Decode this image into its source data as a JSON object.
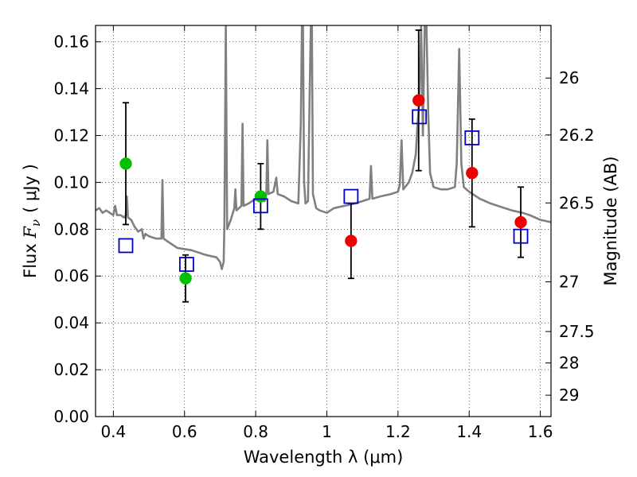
{
  "chart_data": {
    "type": "scatter",
    "title": "",
    "xlabel": "Wavelength  λ (μm)",
    "ylabel_left_prefix": "Flux  ",
    "ylabel_left_math": "F",
    "ylabel_left_sub": "ν",
    "ylabel_left_unit": "( μJy )",
    "ylabel_right": "Magnitude (AB)",
    "xlim": [
      0.35,
      1.63
    ],
    "ylim": [
      0.0,
      0.167
    ],
    "grid": true,
    "x_ticks": [
      {
        "value": 0.4,
        "label": "0.4"
      },
      {
        "value": 0.6,
        "label": "0.6"
      },
      {
        "value": 0.8,
        "label": "0.8"
      },
      {
        "value": 1.0,
        "label": "1"
      },
      {
        "value": 1.2,
        "label": "1.2"
      },
      {
        "value": 1.4,
        "label": "1.4"
      },
      {
        "value": 1.6,
        "label": "1.6"
      }
    ],
    "y_ticks": [
      {
        "value": 0.0,
        "label": "0.00"
      },
      {
        "value": 0.02,
        "label": "0.02"
      },
      {
        "value": 0.04,
        "label": "0.04"
      },
      {
        "value": 0.06,
        "label": "0.06"
      },
      {
        "value": 0.08,
        "label": "0.08"
      },
      {
        "value": 0.1,
        "label": "0.10"
      },
      {
        "value": 0.12,
        "label": "0.12"
      },
      {
        "value": 0.14,
        "label": "0.14"
      },
      {
        "value": 0.16,
        "label": "0.16"
      }
    ],
    "right_ticks": [
      {
        "mag": 26,
        "label": "26"
      },
      {
        "mag": 26.2,
        "label": "26.2"
      },
      {
        "mag": 26.5,
        "label": "26.5"
      },
      {
        "mag": 27,
        "label": "27"
      },
      {
        "mag": 27.5,
        "label": "27.5"
      },
      {
        "mag": 28,
        "label": "28"
      },
      {
        "mag": 29,
        "label": "29"
      }
    ],
    "spectrum": {
      "color": "#808080",
      "points": [
        [
          0.35,
          0.088
        ],
        [
          0.36,
          0.089
        ],
        [
          0.37,
          0.087
        ],
        [
          0.38,
          0.088
        ],
        [
          0.39,
          0.087
        ],
        [
          0.4,
          0.086
        ],
        [
          0.405,
          0.09
        ],
        [
          0.41,
          0.086
        ],
        [
          0.42,
          0.086
        ],
        [
          0.43,
          0.085
        ],
        [
          0.435,
          0.086
        ],
        [
          0.438,
          0.094
        ],
        [
          0.441,
          0.085
        ],
        [
          0.45,
          0.084
        ],
        [
          0.46,
          0.081
        ],
        [
          0.47,
          0.079
        ],
        [
          0.48,
          0.08
        ],
        [
          0.485,
          0.076
        ],
        [
          0.49,
          0.078
        ],
        [
          0.5,
          0.077
        ],
        [
          0.52,
          0.076
        ],
        [
          0.535,
          0.076
        ],
        [
          0.538,
          0.101
        ],
        [
          0.541,
          0.076
        ],
        [
          0.55,
          0.075
        ],
        [
          0.58,
          0.072
        ],
        [
          0.62,
          0.071
        ],
        [
          0.66,
          0.069
        ],
        [
          0.69,
          0.068
        ],
        [
          0.7,
          0.066
        ],
        [
          0.705,
          0.063
        ],
        [
          0.71,
          0.066
        ],
        [
          0.712,
          0.082
        ],
        [
          0.716,
          0.167
        ],
        [
          0.72,
          0.08
        ],
        [
          0.73,
          0.084
        ],
        [
          0.74,
          0.089
        ],
        [
          0.743,
          0.097
        ],
        [
          0.746,
          0.088
        ],
        [
          0.76,
          0.09
        ],
        [
          0.763,
          0.125
        ],
        [
          0.766,
          0.09
        ],
        [
          0.78,
          0.091
        ],
        [
          0.79,
          0.092
        ],
        [
          0.8,
          0.093
        ],
        [
          0.81,
          0.094
        ],
        [
          0.82,
          0.096
        ],
        [
          0.825,
          0.092
        ],
        [
          0.83,
          0.095
        ],
        [
          0.833,
          0.118
        ],
        [
          0.836,
          0.095
        ],
        [
          0.85,
          0.096
        ],
        [
          0.858,
          0.102
        ],
        [
          0.862,
          0.095
        ],
        [
          0.88,
          0.094
        ],
        [
          0.9,
          0.092
        ],
        [
          0.92,
          0.091
        ],
        [
          0.927,
          0.125
        ],
        [
          0.93,
          0.167
        ],
        [
          0.933,
          0.167
        ],
        [
          0.936,
          0.1
        ],
        [
          0.94,
          0.091
        ],
        [
          0.947,
          0.092
        ],
        [
          0.952,
          0.14
        ],
        [
          0.955,
          0.167
        ],
        [
          0.958,
          0.167
        ],
        [
          0.961,
          0.095
        ],
        [
          0.97,
          0.089
        ],
        [
          0.98,
          0.088
        ],
        [
          1.0,
          0.087
        ],
        [
          1.02,
          0.089
        ],
        [
          1.05,
          0.09
        ],
        [
          1.08,
          0.091
        ],
        [
          1.1,
          0.092
        ],
        [
          1.12,
          0.093
        ],
        [
          1.124,
          0.107
        ],
        [
          1.128,
          0.093
        ],
        [
          1.15,
          0.094
        ],
        [
          1.18,
          0.095
        ],
        [
          1.2,
          0.096
        ],
        [
          1.205,
          0.099
        ],
        [
          1.21,
          0.118
        ],
        [
          1.215,
          0.097
        ],
        [
          1.22,
          0.098
        ],
        [
          1.23,
          0.1
        ],
        [
          1.24,
          0.104
        ],
        [
          1.25,
          0.112
        ],
        [
          1.255,
          0.125
        ],
        [
          1.26,
          0.135
        ],
        [
          1.265,
          0.167
        ],
        [
          1.27,
          0.12
        ],
        [
          1.275,
          0.167
        ],
        [
          1.28,
          0.167
        ],
        [
          1.285,
          0.13
        ],
        [
          1.29,
          0.104
        ],
        [
          1.3,
          0.098
        ],
        [
          1.32,
          0.097
        ],
        [
          1.34,
          0.097
        ],
        [
          1.36,
          0.098
        ],
        [
          1.365,
          0.108
        ],
        [
          1.372,
          0.157
        ],
        [
          1.378,
          0.108
        ],
        [
          1.385,
          0.098
        ],
        [
          1.4,
          0.096
        ],
        [
          1.43,
          0.093
        ],
        [
          1.46,
          0.091
        ],
        [
          1.48,
          0.09
        ],
        [
          1.5,
          0.089
        ],
        [
          1.52,
          0.088
        ],
        [
          1.55,
          0.087
        ],
        [
          1.57,
          0.086
        ],
        [
          1.6,
          0.084
        ],
        [
          1.63,
          0.083
        ]
      ]
    },
    "series": [
      {
        "marker": "circle",
        "color": "#00c000",
        "points": [
          {
            "x": 0.435,
            "y": 0.108,
            "err": 0.026
          },
          {
            "x": 0.603,
            "y": 0.059,
            "err": 0.01
          },
          {
            "x": 0.814,
            "y": 0.094,
            "err": 0.014
          }
        ]
      },
      {
        "marker": "circle",
        "color": "#ee0000",
        "points": [
          {
            "x": 1.068,
            "y": 0.075,
            "err": 0.016
          },
          {
            "x": 1.258,
            "y": 0.135,
            "err": 0.03
          },
          {
            "x": 1.408,
            "y": 0.104,
            "err": 0.023
          },
          {
            "x": 1.545,
            "y": 0.083,
            "err": 0.015
          }
        ]
      },
      {
        "marker": "open-square",
        "color": "#0000cc",
        "points": [
          {
            "x": 0.435,
            "y": 0.073
          },
          {
            "x": 0.606,
            "y": 0.065
          },
          {
            "x": 0.814,
            "y": 0.09
          },
          {
            "x": 1.068,
            "y": 0.094
          },
          {
            "x": 1.26,
            "y": 0.128
          },
          {
            "x": 1.408,
            "y": 0.119
          },
          {
            "x": 1.545,
            "y": 0.077
          }
        ]
      }
    ]
  }
}
